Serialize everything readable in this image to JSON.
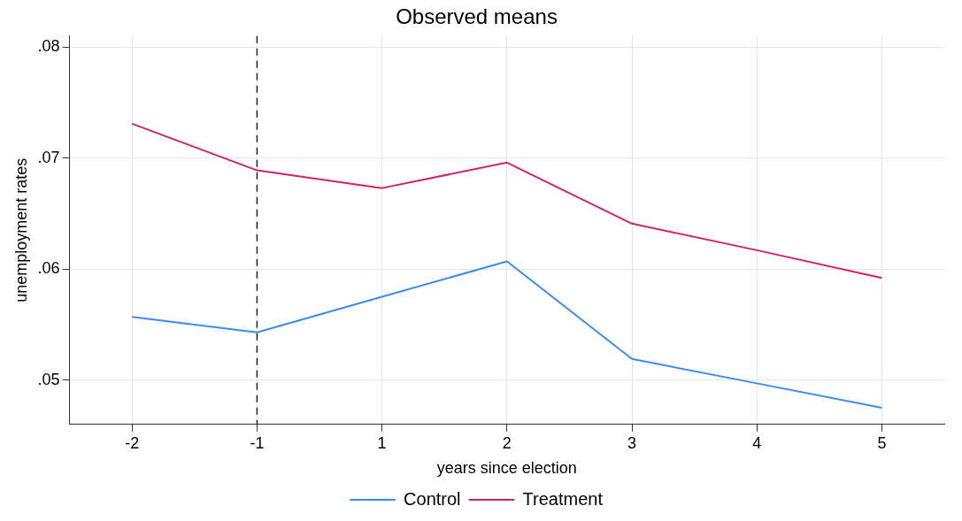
{
  "chart_data": {
    "type": "line",
    "title": "Observed means",
    "xlabel": "years since election",
    "ylabel": "unemployment rates",
    "categories": [
      "-2",
      "-1",
      "1",
      "2",
      "3",
      "4",
      "5"
    ],
    "series": [
      {
        "name": "Control",
        "color": "#3a8cf0",
        "values": [
          0.0557,
          0.0543,
          0.0575,
          0.0607,
          0.0519,
          0.0497,
          0.0475
        ]
      },
      {
        "name": "Treatment",
        "color": "#d6245a",
        "values": [
          0.0731,
          0.0689,
          0.0673,
          0.0696,
          0.0641,
          0.0617,
          0.0592
        ]
      }
    ],
    "ylim": [
      0.046,
      0.081
    ],
    "yticks": [
      {
        "value": 0.05,
        "label": ".05"
      },
      {
        "value": 0.06,
        "label": ".06"
      },
      {
        "value": 0.07,
        "label": ".07"
      },
      {
        "value": 0.08,
        "label": ".08"
      }
    ],
    "ref_lines": [
      {
        "axis": "x",
        "value": "-1",
        "color": "#222222",
        "line_style": "dashed"
      }
    ],
    "grid": true,
    "legend": "bottom",
    "marker": "none",
    "line_style": "solid"
  }
}
